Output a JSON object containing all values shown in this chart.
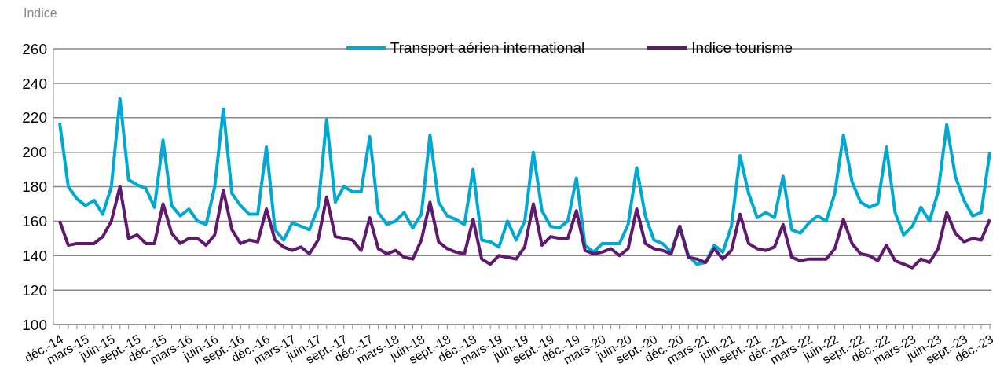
{
  "chart_data": {
    "type": "line",
    "ylabel": "Indice",
    "categories": [
      "déc.-14",
      null,
      null,
      "mars-15",
      null,
      null,
      "juin-15",
      null,
      null,
      "sept.-15",
      null,
      null,
      "déc.-15",
      null,
      null,
      "mars-16",
      null,
      null,
      "juin-16",
      null,
      null,
      "sept.-16",
      null,
      null,
      "déc.-16",
      null,
      null,
      "mars-17",
      null,
      null,
      "juin-17",
      null,
      null,
      "sept.-17",
      null,
      null,
      "déc.-17",
      null,
      null,
      "mars-18",
      null,
      null,
      "juin-18",
      null,
      null,
      "sept.-18",
      null,
      null,
      "déc.-18",
      null,
      null,
      "mars-19",
      null,
      null,
      "juin-19",
      null,
      null,
      "sept.-19",
      null,
      null,
      "déc.-19",
      null,
      null,
      "mars-20",
      null,
      null,
      "juin-20",
      null,
      null,
      "sept.-20",
      null,
      null,
      "déc.-20",
      null,
      null,
      "mars-21",
      null,
      null,
      "juin-21",
      null,
      null,
      "sept.-21",
      null,
      null,
      "déc.-21",
      null,
      null,
      "mars-22",
      null,
      null,
      "juin-22",
      null,
      null,
      "sept.-22",
      null,
      null,
      "déc.-22",
      null,
      null,
      "mars-23",
      null,
      null,
      "juin-23",
      null,
      null,
      "sept.-23",
      null,
      null,
      "déc.-23"
    ],
    "series": [
      {
        "name": "Transport aérien international",
        "color": "#00a9d4",
        "values": [
          217,
          180,
          173,
          169,
          172,
          164,
          180,
          231,
          184,
          181,
          179,
          168,
          207,
          169,
          163,
          167,
          160,
          158,
          180,
          225,
          176,
          169,
          164,
          164,
          203,
          155,
          149,
          159,
          157,
          155,
          168,
          219,
          171,
          180,
          177,
          177,
          209,
          165,
          158,
          160,
          165,
          156,
          164,
          210,
          171,
          163,
          161,
          158,
          190,
          149,
          148,
          145,
          160,
          149,
          160,
          200,
          166,
          157,
          156,
          160,
          185,
          146,
          142,
          147,
          147,
          147,
          158,
          191,
          163,
          149,
          147,
          142,
          157,
          140,
          135,
          136,
          146,
          142,
          157,
          198,
          176,
          162,
          165,
          162,
          186,
          155,
          153,
          159,
          163,
          160,
          176,
          210,
          183,
          171,
          168,
          170,
          203,
          165,
          152,
          157,
          168,
          160,
          177,
          216,
          186,
          172,
          163,
          165,
          200
        ]
      },
      {
        "name": "Indice tourisme",
        "color": "#5f1a6f",
        "values": [
          160,
          146,
          147,
          147,
          147,
          151,
          160,
          180,
          150,
          152,
          147,
          147,
          170,
          153,
          147,
          150,
          150,
          146,
          152,
          178,
          155,
          147,
          149,
          148,
          167,
          149,
          145,
          143,
          145,
          141,
          149,
          174,
          151,
          150,
          149,
          143,
          162,
          144,
          141,
          143,
          139,
          138,
          149,
          171,
          148,
          144,
          142,
          141,
          161,
          138,
          135,
          140,
          139,
          138,
          145,
          170,
          146,
          151,
          150,
          150,
          166,
          143,
          141,
          142,
          144,
          140,
          144,
          167,
          147,
          144,
          143,
          141,
          157,
          139,
          138,
          136,
          144,
          138,
          143,
          164,
          147,
          144,
          143,
          145,
          158,
          139,
          137,
          138,
          138,
          138,
          144,
          161,
          147,
          141,
          140,
          137,
          146,
          137,
          135,
          133,
          138,
          136,
          144,
          165,
          153,
          148,
          150,
          149,
          161
        ]
      }
    ],
    "ylim": [
      100,
      260
    ],
    "yticks": [
      100,
      120,
      140,
      160,
      180,
      200,
      220,
      240,
      260
    ],
    "grid": "y",
    "legend": "top",
    "marker": "none",
    "line_style": "solid"
  }
}
